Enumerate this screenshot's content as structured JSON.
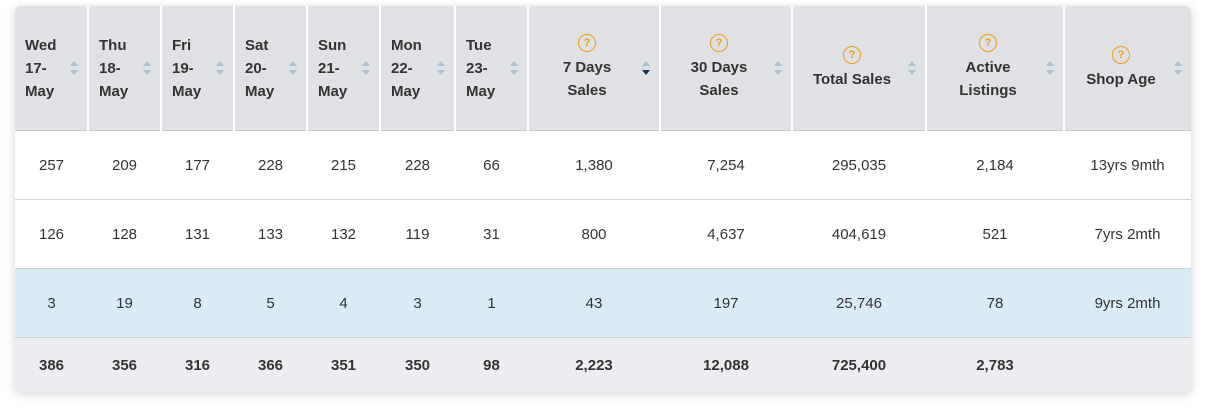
{
  "columns": [
    {
      "key": "wed",
      "label": "Wed 17- May",
      "lines": [
        "Wed",
        "17-",
        "May"
      ],
      "help": false
    },
    {
      "key": "thu",
      "label": "Thu 18- May",
      "lines": [
        "Thu",
        "18-",
        "May"
      ],
      "help": false
    },
    {
      "key": "fri",
      "label": "Fri 19- May",
      "lines": [
        "Fri",
        "19-",
        "May"
      ],
      "help": false
    },
    {
      "key": "sat",
      "label": "Sat 20- May",
      "lines": [
        "Sat",
        "20-",
        "May"
      ],
      "help": false
    },
    {
      "key": "sun",
      "label": "Sun 21- May",
      "lines": [
        "Sun",
        "21-",
        "May"
      ],
      "help": false
    },
    {
      "key": "mon",
      "label": "Mon 22- May",
      "lines": [
        "Mon",
        "22-",
        "May"
      ],
      "help": false
    },
    {
      "key": "tue",
      "label": "Tue 23- May",
      "lines": [
        "Tue",
        "23-",
        "May"
      ],
      "help": false
    },
    {
      "key": "7d",
      "lines": [
        "7 Days",
        "Sales"
      ],
      "help": true,
      "sorted": "desc"
    },
    {
      "key": "30d",
      "lines": [
        "30 Days",
        "Sales"
      ],
      "help": true
    },
    {
      "key": "total",
      "lines": [
        "Total Sales"
      ],
      "help": true
    },
    {
      "key": "active",
      "lines": [
        "Active",
        "Listings"
      ],
      "help": true
    },
    {
      "key": "age",
      "lines": [
        "Shop Age"
      ],
      "help": true
    }
  ],
  "help_glyph": "?",
  "icons": {
    "help": "help-circle-icon",
    "sort": "sort-icon"
  },
  "colors": {
    "header_bg": "#dfe1e4",
    "help": "#f39c12",
    "highlight_row": "#d9ecf5",
    "footer_bg": "#eceef1",
    "sort_active": "#0f3a5f"
  },
  "rows": [
    {
      "cells": [
        "257",
        "209",
        "177",
        "228",
        "215",
        "228",
        "66",
        "1,380",
        "7,254",
        "295,035",
        "2,184",
        "13yrs 9mth"
      ],
      "highlight": false
    },
    {
      "cells": [
        "126",
        "128",
        "131",
        "133",
        "132",
        "119",
        "31",
        "800",
        "4,637",
        "404,619",
        "521",
        "7yrs 2mth"
      ],
      "highlight": false
    },
    {
      "cells": [
        "3",
        "19",
        "8",
        "5",
        "4",
        "3",
        "1",
        "43",
        "197",
        "25,746",
        "78",
        "9yrs 2mth"
      ],
      "highlight": true
    }
  ],
  "totals": [
    "386",
    "356",
    "316",
    "366",
    "351",
    "350",
    "98",
    "2,223",
    "12,088",
    "725,400",
    "2,783",
    ""
  ]
}
